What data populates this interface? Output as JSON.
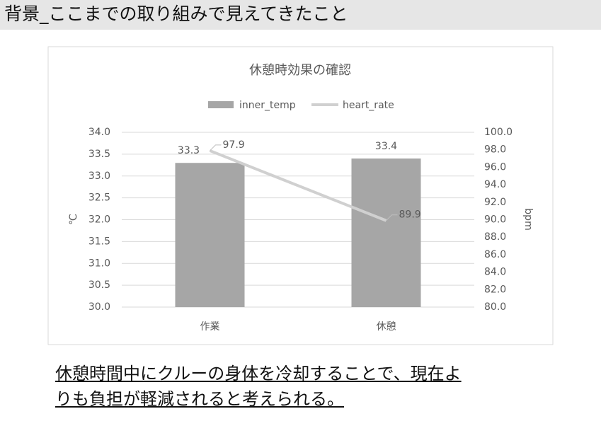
{
  "header": {
    "title": "背景_ここまでの取り組みで見えてきたこと"
  },
  "chart_data": {
    "type": "bar",
    "title": "休憩時効果の確認",
    "categories": [
      "作業",
      "休憩"
    ],
    "series": [
      {
        "name": "inner_temp",
        "type": "bar",
        "color": "#a6a6a6",
        "values": [
          33.3,
          33.4
        ]
      },
      {
        "name": "heart_rate",
        "type": "line",
        "axis": "y2",
        "color": "#d0d0d0",
        "values": [
          97.9,
          89.9
        ]
      }
    ],
    "ylabel": "℃",
    "y2label": "bpm",
    "ylim": [
      30,
      34
    ],
    "yticks": [
      {
        "value": 30,
        "label": "30.0"
      },
      30.5,
      {
        "value": 31,
        "label": "31.0"
      },
      31.5,
      {
        "value": 32,
        "label": "32.0"
      },
      32.5,
      {
        "value": 33,
        "label": "33.0"
      },
      33.5,
      {
        "value": 34,
        "label": "34.0"
      }
    ],
    "y2lim": [
      80,
      100
    ],
    "y2ticks": [
      {
        "value": 80,
        "label": "80.0"
      },
      {
        "value": 82,
        "label": "82.0"
      },
      {
        "value": 84,
        "label": "84.0"
      },
      {
        "value": 86,
        "label": "86.0"
      },
      {
        "value": 88,
        "label": "88.0"
      },
      {
        "value": 90,
        "label": "90.0"
      },
      {
        "value": 92,
        "label": "92.0"
      },
      {
        "value": 94,
        "label": "94.0"
      },
      {
        "value": 96,
        "label": "96.0"
      },
      {
        "value": 98,
        "label": "98.0"
      },
      {
        "value": 100,
        "label": "100.0"
      }
    ],
    "grid": true,
    "legend": "top"
  },
  "conclusion": [
    "休憩時間中にクルーの身体を冷却することで、現在よ",
    "りも負担が軽減されると考えられる。"
  ]
}
